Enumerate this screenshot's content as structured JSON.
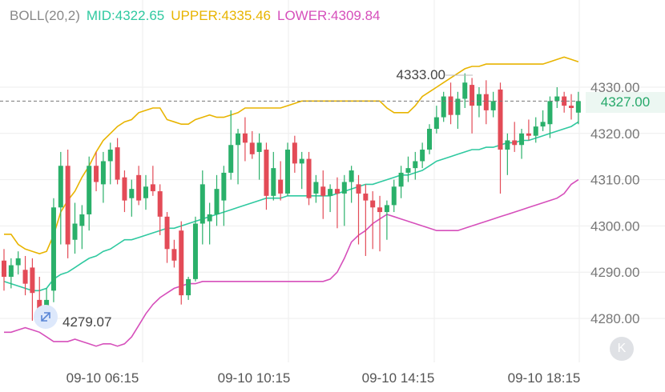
{
  "legend": {
    "boll": "BOLL(20,2)",
    "mid": "MID:4322.65",
    "upper": "UPPER:4335.46",
    "lower": "LOWER:4309.84"
  },
  "current_price": "4327.00",
  "colors": {
    "up": "#2ab06a",
    "down": "#e34b57",
    "mid": "#2fc9a0",
    "upper": "#e8b400",
    "lower": "#d64fbb"
  },
  "icons": {
    "reset": "collapse-left-icon",
    "zoom": "expand-arrows-icon"
  },
  "reset_glyph": "K",
  "chart_data": {
    "type": "candlestick",
    "yticks": [
      "4330.00",
      "4320.00",
      "4310.00",
      "4300.00",
      "4290.00",
      "4280.00"
    ],
    "ytick_values": [
      4330,
      4320,
      4310,
      4300,
      4290,
      4280
    ],
    "xticks": [
      "09-10 06:15",
      "09-10 10:15",
      "09-10 14:15",
      "09-10 18:15"
    ],
    "ylim": [
      4273.7,
      4338.1
    ],
    "current_price": 4327.0,
    "annotations": {
      "high": "4333.00",
      "low": "4279.07"
    },
    "grid": true,
    "candles": [
      {
        "o": 4292.5,
        "h": 4295.0,
        "l": 4286.0,
        "c": 4289.0
      },
      {
        "o": 4289.0,
        "h": 4293.0,
        "l": 4286.5,
        "c": 4291.5
      },
      {
        "o": 4291.5,
        "h": 4294.5,
        "l": 4289.5,
        "c": 4293.0
      },
      {
        "o": 4290.5,
        "h": 4293.5,
        "l": 4285.0,
        "c": 4287.5
      },
      {
        "o": 4291.0,
        "h": 4293.0,
        "l": 4279.5,
        "c": 4285.5
      },
      {
        "o": 4284.0,
        "h": 4289.0,
        "l": 4279.0,
        "c": 4281.0
      },
      {
        "o": 4281.5,
        "h": 4286.5,
        "l": 4279.1,
        "c": 4284.0
      },
      {
        "o": 4286.0,
        "h": 4306.0,
        "l": 4283.5,
        "c": 4304.0
      },
      {
        "o": 4304.0,
        "h": 4316.0,
        "l": 4296.0,
        "c": 4313.0
      },
      {
        "o": 4313.0,
        "h": 4316.5,
        "l": 4293.0,
        "c": 4296.0
      },
      {
        "o": 4297.0,
        "h": 4305.0,
        "l": 4294.0,
        "c": 4300.5
      },
      {
        "o": 4300.0,
        "h": 4304.5,
        "l": 4295.0,
        "c": 4302.5
      },
      {
        "o": 4302.5,
        "h": 4315.0,
        "l": 4299.0,
        "c": 4313.0
      },
      {
        "o": 4313.0,
        "h": 4316.0,
        "l": 4307.5,
        "c": 4309.5
      },
      {
        "o": 4309.0,
        "h": 4316.0,
        "l": 4305.0,
        "c": 4314.0
      },
      {
        "o": 4314.0,
        "h": 4318.0,
        "l": 4309.0,
        "c": 4316.5
      },
      {
        "o": 4317.0,
        "h": 4319.0,
        "l": 4309.0,
        "c": 4310.0
      },
      {
        "o": 4310.5,
        "h": 4312.0,
        "l": 4303.0,
        "c": 4305.5
      },
      {
        "o": 4306.0,
        "h": 4310.0,
        "l": 4302.0,
        "c": 4308.0
      },
      {
        "o": 4311.0,
        "h": 4313.0,
        "l": 4304.5,
        "c": 4305.5
      },
      {
        "o": 4306.0,
        "h": 4311.0,
        "l": 4303.5,
        "c": 4308.5
      },
      {
        "o": 4309.0,
        "h": 4313.0,
        "l": 4306.5,
        "c": 4307.5
      },
      {
        "o": 4307.5,
        "h": 4309.0,
        "l": 4298.0,
        "c": 4302.0
      },
      {
        "o": 4302.0,
        "h": 4303.0,
        "l": 4292.0,
        "c": 4295.0
      },
      {
        "o": 4295.0,
        "h": 4297.0,
        "l": 4291.0,
        "c": 4292.5
      },
      {
        "o": 4299.0,
        "h": 4301.0,
        "l": 4283.0,
        "c": 4285.0
      },
      {
        "o": 4285.0,
        "h": 4289.0,
        "l": 4284.0,
        "c": 4288.5
      },
      {
        "o": 4288.5,
        "h": 4302.0,
        "l": 4288.0,
        "c": 4300.5
      },
      {
        "o": 4300.5,
        "h": 4312.0,
        "l": 4296.0,
        "c": 4309.0
      },
      {
        "o": 4301.0,
        "h": 4305.0,
        "l": 4296.0,
        "c": 4302.5
      },
      {
        "o": 4302.5,
        "h": 4311.0,
        "l": 4300.0,
        "c": 4308.0
      },
      {
        "o": 4305.5,
        "h": 4313.0,
        "l": 4300.0,
        "c": 4311.5
      },
      {
        "o": 4311.5,
        "h": 4325.0,
        "l": 4310.0,
        "c": 4317.5
      },
      {
        "o": 4317.5,
        "h": 4321.0,
        "l": 4309.0,
        "c": 4320.0
      },
      {
        "o": 4320.0,
        "h": 4323.5,
        "l": 4314.0,
        "c": 4318.0
      },
      {
        "o": 4318.0,
        "h": 4320.5,
        "l": 4314.5,
        "c": 4315.5
      },
      {
        "o": 4316.0,
        "h": 4320.0,
        "l": 4310.0,
        "c": 4318.0
      },
      {
        "o": 4316.5,
        "h": 4318.0,
        "l": 4303.5,
        "c": 4306.5
      },
      {
        "o": 4306.5,
        "h": 4316.0,
        "l": 4305.5,
        "c": 4312.5
      },
      {
        "o": 4310.0,
        "h": 4314.0,
        "l": 4305.5,
        "c": 4307.0
      },
      {
        "o": 4307.0,
        "h": 4318.0,
        "l": 4306.5,
        "c": 4316.5
      },
      {
        "o": 4318.0,
        "h": 4319.5,
        "l": 4311.5,
        "c": 4313.5
      },
      {
        "o": 4313.5,
        "h": 4316.0,
        "l": 4308.0,
        "c": 4314.5
      },
      {
        "o": 4314.5,
        "h": 4316.0,
        "l": 4304.5,
        "c": 4306.0
      },
      {
        "o": 4307.0,
        "h": 4311.0,
        "l": 4305.0,
        "c": 4309.5
      },
      {
        "o": 4308.5,
        "h": 4312.0,
        "l": 4301.5,
        "c": 4306.5
      },
      {
        "o": 4306.5,
        "h": 4309.0,
        "l": 4303.0,
        "c": 4308.0
      },
      {
        "o": 4308.0,
        "h": 4310.5,
        "l": 4299.5,
        "c": 4307.0
      },
      {
        "o": 4307.0,
        "h": 4311.0,
        "l": 4300.0,
        "c": 4309.5
      },
      {
        "o": 4309.5,
        "h": 4313.0,
        "l": 4305.0,
        "c": 4312.0
      },
      {
        "o": 4309.0,
        "h": 4311.0,
        "l": 4296.0,
        "c": 4307.0
      },
      {
        "o": 4307.0,
        "h": 4309.0,
        "l": 4293.5,
        "c": 4305.5
      },
      {
        "o": 4305.5,
        "h": 4307.5,
        "l": 4295.0,
        "c": 4304.0
      },
      {
        "o": 4304.0,
        "h": 4306.5,
        "l": 4294.5,
        "c": 4303.0
      },
      {
        "o": 4303.0,
        "h": 4305.5,
        "l": 4297.0,
        "c": 4304.5
      },
      {
        "o": 4304.5,
        "h": 4310.0,
        "l": 4303.0,
        "c": 4308.5
      },
      {
        "o": 4308.5,
        "h": 4313.0,
        "l": 4306.0,
        "c": 4311.5
      },
      {
        "o": 4311.5,
        "h": 4315.0,
        "l": 4309.5,
        "c": 4312.5
      },
      {
        "o": 4312.5,
        "h": 4316.0,
        "l": 4310.0,
        "c": 4314.0
      },
      {
        "o": 4314.0,
        "h": 4318.0,
        "l": 4312.5,
        "c": 4316.5
      },
      {
        "o": 4316.5,
        "h": 4322.0,
        "l": 4315.5,
        "c": 4321.0
      },
      {
        "o": 4321.0,
        "h": 4326.0,
        "l": 4320.0,
        "c": 4323.5
      },
      {
        "o": 4323.5,
        "h": 4329.0,
        "l": 4322.5,
        "c": 4328.0
      },
      {
        "o": 4328.0,
        "h": 4331.0,
        "l": 4322.0,
        "c": 4324.0
      },
      {
        "o": 4324.0,
        "h": 4329.0,
        "l": 4321.0,
        "c": 4327.5
      },
      {
        "o": 4327.5,
        "h": 4333.0,
        "l": 4325.5,
        "c": 4331.0
      },
      {
        "o": 4330.5,
        "h": 4332.0,
        "l": 4320.0,
        "c": 4326.0
      },
      {
        "o": 4326.0,
        "h": 4330.0,
        "l": 4323.5,
        "c": 4328.5
      },
      {
        "o": 4328.5,
        "h": 4331.5,
        "l": 4322.0,
        "c": 4325.0
      },
      {
        "o": 4325.0,
        "h": 4329.0,
        "l": 4323.5,
        "c": 4327.0
      },
      {
        "o": 4329.5,
        "h": 4331.0,
        "l": 4307.0,
        "c": 4316.5
      },
      {
        "o": 4316.5,
        "h": 4320.0,
        "l": 4311.0,
        "c": 4318.5
      },
      {
        "o": 4318.5,
        "h": 4322.5,
        "l": 4316.0,
        "c": 4317.5
      },
      {
        "o": 4317.5,
        "h": 4321.0,
        "l": 4314.5,
        "c": 4320.0
      },
      {
        "o": 4320.0,
        "h": 4323.0,
        "l": 4318.5,
        "c": 4319.5
      },
      {
        "o": 4319.5,
        "h": 4323.5,
        "l": 4318.0,
        "c": 4321.5
      },
      {
        "o": 4321.5,
        "h": 4325.0,
        "l": 4320.5,
        "c": 4322.5
      },
      {
        "o": 4322.0,
        "h": 4328.0,
        "l": 4319.0,
        "c": 4327.0
      },
      {
        "o": 4327.0,
        "h": 4330.0,
        "l": 4325.5,
        "c": 4328.0
      },
      {
        "o": 4328.0,
        "h": 4329.0,
        "l": 4324.5,
        "c": 4326.0
      },
      {
        "o": 4326.0,
        "h": 4328.5,
        "l": 4323.0,
        "c": 4325.5
      },
      {
        "o": 4324.5,
        "h": 4329.0,
        "l": 4322.0,
        "c": 4327.0
      }
    ],
    "series": [
      {
        "values": [
          4298.2,
          4298.2,
          4296.0,
          4295.0,
          4294.5,
          4294.0,
          4294.5,
          4298.0,
          4303.0,
          4305.5,
          4307.5,
          4310.5,
          4313.0,
          4316.0,
          4318.5,
          4320.0,
          4321.5,
          4322.5,
          4323.0,
          4324.5,
          4325.0,
          4325.5,
          4325.5,
          4323.0,
          4322.5,
          4322.0,
          4322.0,
          4323.0,
          4323.5,
          4324.0,
          4323.5,
          4323.5,
          4324.0,
          4324.5,
          4325.5,
          4325.5,
          4325.5,
          4325.5,
          4325.5,
          4325.5,
          4326.0,
          4326.5,
          4327.0,
          4327.0,
          4327.0,
          4327.0,
          4327.0,
          4327.0,
          4327.0,
          4327.0,
          4327.0,
          4327.0,
          4327.0,
          4327.0,
          4325.5,
          4324.5,
          4324.5,
          4324.5,
          4326.0,
          4328.0,
          4329.0,
          4330.0,
          4331.0,
          4332.0,
          4333.0,
          4334.0,
          4334.5,
          4334.5,
          4335.0,
          4335.0,
          4335.0,
          4335.0,
          4335.0,
          4335.0,
          4335.0,
          4335.0,
          4335.0,
          4335.5,
          4336.0,
          4336.5,
          4336.0,
          4335.5
        ]
      },
      {
        "values": [
          4288.0,
          4287.5,
          4287.0,
          4286.5,
          4286.0,
          4286.0,
          4286.5,
          4288.5,
          4289.5,
          4290.0,
          4291.0,
          4292.0,
          4293.0,
          4293.5,
          4294.5,
          4295.0,
          4296.0,
          4297.0,
          4297.0,
          4297.5,
          4298.0,
          4298.5,
          4299.0,
          4299.5,
          4299.5,
          4300.0,
          4300.5,
          4301.0,
          4301.5,
          4302.0,
          4302.5,
          4303.0,
          4303.5,
          4304.0,
          4304.5,
          4305.0,
          4305.5,
          4306.0,
          4306.0,
          4306.0,
          4306.5,
          4306.5,
          4306.5,
          4306.5,
          4306.5,
          4306.5,
          4306.5,
          4307.0,
          4307.5,
          4308.0,
          4308.5,
          4309.0,
          4309.0,
          4309.5,
          4310.0,
          4310.5,
          4311.0,
          4311.0,
          4311.5,
          4312.0,
          4313.0,
          4314.0,
          4314.5,
          4315.0,
          4315.5,
          4316.0,
          4316.5,
          4316.5,
          4317.0,
          4317.0,
          4317.5,
          4318.0,
          4318.0,
          4318.5,
          4318.5,
          4319.0,
          4319.5,
          4320.0,
          4320.5,
          4321.0,
          4321.5,
          4322.5
        ]
      },
      {
        "values": [
          4277.0,
          4277.0,
          4277.5,
          4278.0,
          4277.5,
          4277.0,
          4276.0,
          4275.0,
          4275.0,
          4275.0,
          4275.5,
          4275.0,
          4274.5,
          4274.0,
          4274.5,
          4274.5,
          4274.0,
          4274.5,
          4276.0,
          4278.5,
          4281.0,
          4283.0,
          4284.5,
          4285.5,
          4286.5,
          4287.0,
          4287.5,
          4287.5,
          4288.0,
          4288.0,
          4288.0,
          4288.0,
          4288.0,
          4288.0,
          4288.0,
          4288.0,
          4288.0,
          4288.0,
          4288.0,
          4288.0,
          4288.0,
          4288.0,
          4288.0,
          4288.0,
          4288.0,
          4288.0,
          4288.5,
          4290.0,
          4293.0,
          4296.5,
          4298.0,
          4299.0,
          4300.5,
          4301.5,
          4302.5,
          4302.0,
          4301.5,
          4301.0,
          4300.5,
          4300.0,
          4299.5,
          4299.0,
          4299.0,
          4299.0,
          4299.0,
          4299.5,
          4300.0,
          4300.5,
          4301.0,
          4301.5,
          4302.0,
          4302.5,
          4303.0,
          4303.5,
          4304.0,
          4304.5,
          4305.0,
          4305.5,
          4306.0,
          4307.0,
          4309.0,
          4310.0
        ]
      }
    ]
  }
}
